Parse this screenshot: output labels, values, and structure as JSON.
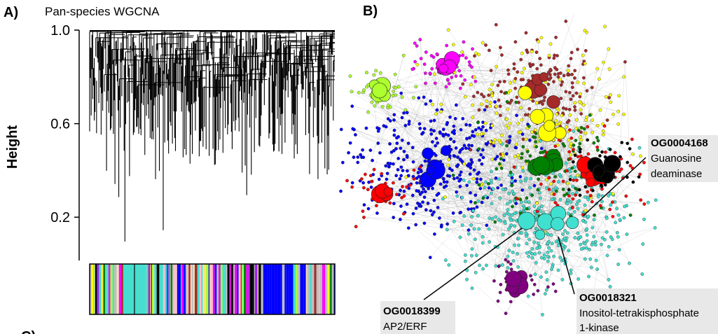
{
  "panel_a": {
    "label": "A)",
    "title": "Pan-species WGCNA",
    "y_label": "Height",
    "ylim": [
      0,
      1
    ],
    "yticks": [
      {
        "value": 1,
        "label": "1.0"
      },
      {
        "value": 0.6,
        "label": "0.6"
      },
      {
        "value": 0.2,
        "label": "0.2"
      }
    ]
  },
  "panel_b": {
    "label": "B)",
    "annotations": [
      {
        "id": "OG0004168",
        "lines": [
          "Guanosine",
          "deaminase"
        ]
      },
      {
        "id": "OG0018399",
        "lines": [
          "AP2/ERF"
        ]
      },
      {
        "id": "OG0018321",
        "lines": [
          "Inositol-tetrakisphosphate",
          "1-kinase"
        ]
      }
    ]
  },
  "panel_c": {
    "label": "C)"
  }
}
